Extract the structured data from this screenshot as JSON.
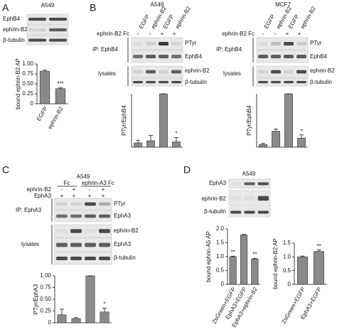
{
  "figure": {
    "A": {
      "label": "A",
      "cell_line": "A549",
      "rows": [
        "EphB4",
        "ephrin-B2",
        "β-tubulin"
      ]
    },
    "B": {
      "label": "B",
      "left": {
        "cell_line": "A549",
        "lanes": [
          "EGFP",
          "ephrin-B2",
          "EGFP",
          "ephrin-B2"
        ],
        "treatment": "ephrin-B2 Fc",
        "signs": [
          "-",
          "-",
          "+",
          "+"
        ],
        "ip": "IP: EphB4",
        "ip_rows": [
          "PTyr",
          "EphB4"
        ],
        "lysates": "lysates",
        "lysate_rows": [
          "ephrin-B2",
          "β-tubulin"
        ]
      },
      "right": {
        "cell_line": "MCF7",
        "lanes": [
          "EGFP",
          "ephrin-B2",
          "EGFP",
          "ephrin-B2"
        ],
        "treatment": "ephrin-B2 Fc",
        "signs": [
          "-",
          "-",
          "+",
          "+"
        ],
        "ip": "IP: EphB4",
        "ip_rows": [
          "PTyr",
          "EphB4"
        ],
        "lysates": "lysates",
        "lysate_rows": [
          "ephrin-B2",
          "β-tubulin"
        ]
      }
    },
    "C": {
      "label": "C",
      "cell_line": "A549",
      "groups": [
        "Fc",
        "ephrin-A3 Fc"
      ],
      "rows": [
        "ephrin-B2",
        "EphA3"
      ],
      "signs": [
        [
          "-",
          "+",
          "-",
          "+"
        ],
        [
          "+",
          "+",
          "+",
          "+"
        ]
      ],
      "ip": "IP: EphA3",
      "ip_rows": [
        "PTyr",
        "EphA3"
      ],
      "lysates": "lysates",
      "lysate_rows": [
        "ephrin-B2",
        "EphA3",
        "β-tubulin"
      ]
    },
    "D": {
      "label": "D",
      "cell_line": "A549",
      "rows": [
        "EphA3",
        "ephrin-B2",
        "β-tubulin"
      ]
    }
  },
  "chart_data": [
    {
      "type": "bar",
      "ylabel": "bound ephrin-B2 AP",
      "categories": [
        "EGFP",
        "ephrin-B2"
      ],
      "values": [
        0.82,
        0.38
      ],
      "errors": [
        0.03,
        0.02
      ],
      "significance": [
        null,
        "***"
      ],
      "color": "#8a8a8a",
      "ylim": [
        0,
        1
      ],
      "yticks": [
        0,
        0.25,
        {
          "value": 0.5,
          "label": "0.50"
        },
        0.75,
        {
          "value": 1,
          "label": "1.00"
        }
      ]
    },
    {
      "type": "bar",
      "ylabel": "PTyr/EphB4",
      "categories": [
        null,
        null,
        null,
        null
      ],
      "values": [
        0.08,
        0.12,
        1.0,
        0.1
      ],
      "errors": [
        0.05,
        0.1,
        0,
        0.08
      ],
      "significance": [
        null,
        null,
        null,
        "*"
      ],
      "color": "#8a8a8a",
      "ylim": [
        0,
        1
      ]
    },
    {
      "type": "bar",
      "ylabel": "PTyr/EphB4",
      "categories": [
        null,
        null,
        null,
        null
      ],
      "values": [
        0.05,
        0.3,
        1.0,
        0.17
      ],
      "errors": [
        0.02,
        0.04,
        0,
        0.06
      ],
      "significance": [
        null,
        null,
        null,
        "*"
      ],
      "color": "#8a8a8a",
      "ylim": [
        0,
        1
      ]
    },
    {
      "type": "bar",
      "ylabel": "PTyr/EphA3",
      "categories": [
        null,
        null,
        null,
        null
      ],
      "values": [
        0.17,
        0.09,
        1.0,
        0.23
      ],
      "errors": [
        0.12,
        0.02,
        0,
        0.08
      ],
      "significance": [
        null,
        null,
        null,
        "*"
      ],
      "color": "#8a8a8a",
      "ylim": [
        0,
        1
      ],
      "yticks": [
        0,
        0.25,
        {
          "value": 0.5,
          "label": "0.50"
        },
        0.75,
        {
          "value": 1,
          "label": "1.00"
        }
      ]
    },
    {
      "type": "bar",
      "ylabel": "bound ephrin-A5 AP",
      "categories": [
        "ZsGreen+EGFP",
        "EphA3+EGFP",
        "EphA3+ephrin-B2"
      ],
      "values": [
        1.0,
        1.78,
        0.92
      ],
      "errors": [
        0.02,
        0.02,
        0.02
      ],
      "significance": [
        "**",
        null,
        "**"
      ],
      "color": "#8a8a8a",
      "ylim": [
        0,
        2
      ],
      "yticks": [
        0,
        0.5,
        {
          "value": 1,
          "label": "1.0"
        },
        1.5,
        {
          "value": 2,
          "label": "2.0"
        }
      ]
    },
    {
      "type": "bar",
      "ylabel": "bound ephrin-B2 AP",
      "categories": [
        "ZsGreen+EGFP",
        "EphA3+EGFP"
      ],
      "values": [
        1.0,
        1.2
      ],
      "errors": [
        0.03,
        0.05
      ],
      "significance": [
        null,
        "**"
      ],
      "color": "#8a8a8a",
      "ylim": [
        0,
        1.5
      ],
      "yticks": [
        0,
        0.5,
        {
          "value": 1,
          "label": "1.0"
        },
        1.5
      ]
    }
  ]
}
